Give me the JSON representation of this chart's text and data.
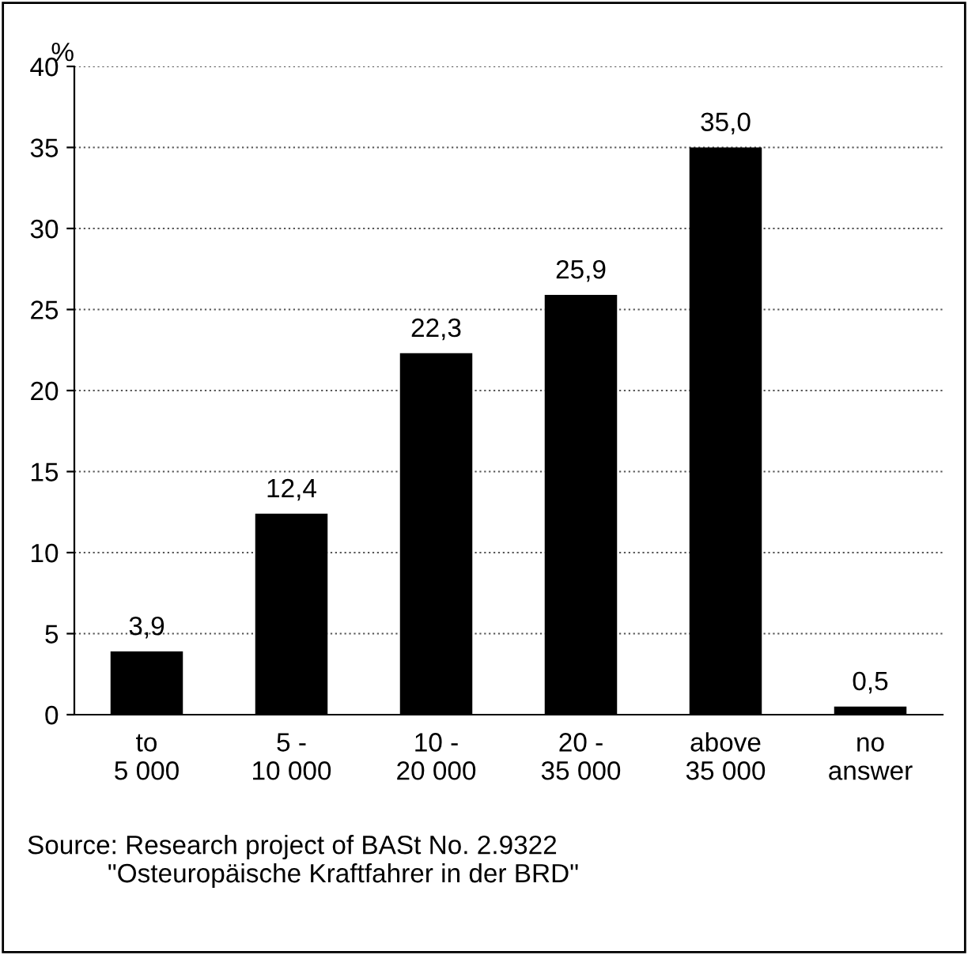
{
  "chart_data": {
    "type": "bar",
    "ylabel": "%",
    "categories": [
      "to\n5 000",
      "5 -\n10 000",
      "10 -\n20 000",
      "20 -\n35 000",
      "above\n35 000",
      "no\nanswer"
    ],
    "values": [
      3.9,
      12.4,
      22.3,
      25.9,
      35.0,
      0.5
    ],
    "value_labels": [
      "3,9",
      "12,4",
      "22,3",
      "25,9",
      "35,0",
      "0,5"
    ],
    "color": "#000000",
    "ylim": [
      0,
      40
    ],
    "yticks": [
      0,
      5,
      10,
      15,
      20,
      25,
      30,
      35,
      40
    ],
    "grid": "y",
    "line_style": "dotted",
    "annotations": [
      "Source: Research project of BASt No. 2.9322\n           \"Osteuropäische Kraftfahrer in der BRD\""
    ]
  }
}
